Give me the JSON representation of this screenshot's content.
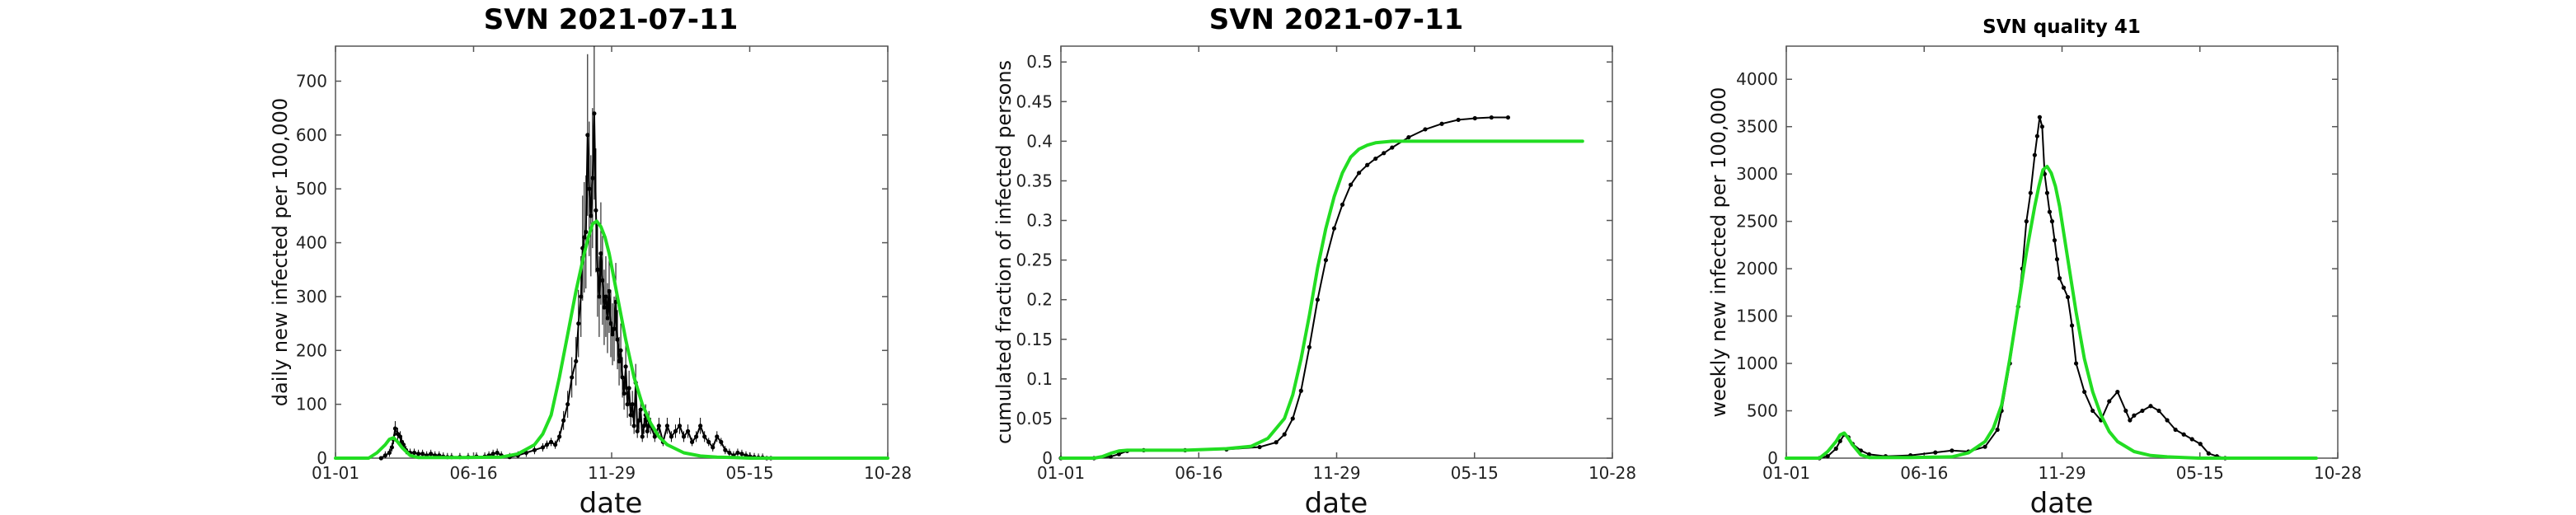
{
  "chart_data": [
    {
      "type": "line",
      "title": "SVN   2021-07-11",
      "xlabel": "date",
      "ylabel": "daily new infected per 100,000",
      "x_ticks": [
        "01-01",
        "06-16",
        "11-29",
        "05-15",
        "10-28"
      ],
      "y_ticks": [
        "0",
        "100",
        "200",
        "300",
        "400",
        "500",
        "600",
        "700"
      ],
      "ylim": [
        0,
        765
      ],
      "x_range_days": [
        0,
        666
      ],
      "x_unit": "days from 01-01",
      "grid": false,
      "series": [
        {
          "style": "black dots with error bars",
          "color": "#000000",
          "x": [
            55,
            60,
            65,
            68,
            70,
            72,
            75,
            78,
            80,
            82,
            85,
            90,
            95,
            100,
            105,
            110,
            115,
            120,
            125,
            130,
            135,
            140,
            150,
            160,
            170,
            180,
            185,
            190,
            195,
            200,
            210,
            220,
            230,
            240,
            250,
            255,
            260,
            265,
            270,
            275,
            280,
            285,
            290,
            293,
            296,
            298,
            300,
            302,
            304,
            306,
            308,
            310,
            312,
            314,
            316,
            318,
            320,
            322,
            324,
            326,
            328,
            330,
            332,
            334,
            336,
            338,
            340,
            342,
            344,
            346,
            348,
            350,
            352,
            354,
            356,
            358,
            360,
            362,
            364,
            366,
            368,
            370,
            372,
            374,
            376,
            378,
            380,
            385,
            390,
            395,
            400,
            405,
            410,
            415,
            420,
            425,
            430,
            435,
            440,
            445,
            450,
            455,
            460,
            465,
            470,
            475,
            480,
            485,
            490,
            495,
            500,
            505,
            510,
            515,
            520,
            525
          ],
          "y": [
            0,
            5,
            10,
            20,
            35,
            55,
            45,
            40,
            30,
            25,
            15,
            10,
            10,
            8,
            8,
            5,
            8,
            5,
            5,
            3,
            2,
            2,
            2,
            2,
            3,
            3,
            5,
            8,
            10,
            5,
            2,
            5,
            10,
            15,
            20,
            25,
            30,
            25,
            40,
            70,
            100,
            150,
            180,
            250,
            300,
            390,
            410,
            420,
            600,
            500,
            450,
            520,
            640,
            460,
            350,
            300,
            380,
            330,
            280,
            300,
            260,
            310,
            250,
            230,
            240,
            290,
            220,
            180,
            200,
            150,
            120,
            170,
            100,
            130,
            80,
            100,
            60,
            140,
            50,
            70,
            90,
            40,
            60,
            80,
            50,
            70,
            60,
            40,
            60,
            30,
            60,
            40,
            50,
            60,
            40,
            50,
            30,
            40,
            60,
            40,
            30,
            20,
            40,
            30,
            15,
            10,
            5,
            10,
            8,
            5,
            3,
            2,
            1,
            1,
            0,
            0
          ]
        },
        {
          "style": "green fitted curve",
          "color": "#22dd22",
          "x": [
            0,
            40,
            50,
            60,
            65,
            70,
            75,
            80,
            90,
            100,
            150,
            200,
            220,
            240,
            250,
            260,
            270,
            280,
            290,
            300,
            305,
            310,
            315,
            320,
            325,
            330,
            340,
            350,
            360,
            370,
            380,
            390,
            400,
            420,
            440,
            460,
            480,
            500,
            550,
            600,
            666
          ],
          "y": [
            0,
            0,
            10,
            25,
            35,
            38,
            30,
            20,
            5,
            1,
            1,
            2,
            8,
            25,
            45,
            80,
            150,
            230,
            310,
            380,
            410,
            435,
            440,
            430,
            410,
            380,
            300,
            220,
            150,
            100,
            65,
            40,
            25,
            10,
            4,
            2,
            1,
            0,
            0,
            0,
            0
          ]
        }
      ]
    },
    {
      "type": "line",
      "title": "SVN   2021-07-11",
      "xlabel": "date",
      "ylabel": "cumulated fraction of infected persons",
      "x_ticks": [
        "01-01",
        "06-16",
        "11-29",
        "05-15",
        "10-28"
      ],
      "y_ticks": [
        "0",
        "0.05",
        "0.1",
        "0.15",
        "0.2",
        "0.25",
        "0.3",
        "0.35",
        "0.4",
        "0.45",
        "0.5"
      ],
      "ylim": [
        0,
        0.52
      ],
      "x_range_days": [
        0,
        666
      ],
      "x_unit": "days from 01-01",
      "grid": false,
      "series": [
        {
          "style": "black dotted line",
          "color": "#000000",
          "x": [
            0,
            40,
            60,
            70,
            80,
            100,
            150,
            200,
            240,
            260,
            270,
            280,
            290,
            300,
            310,
            320,
            330,
            340,
            350,
            360,
            370,
            380,
            390,
            400,
            420,
            440,
            460,
            480,
            500,
            520,
            540
          ],
          "y": [
            0,
            0,
            0.002,
            0.005,
            0.009,
            0.01,
            0.01,
            0.011,
            0.014,
            0.02,
            0.03,
            0.05,
            0.085,
            0.14,
            0.2,
            0.25,
            0.29,
            0.32,
            0.345,
            0.36,
            0.37,
            0.378,
            0.385,
            0.392,
            0.405,
            0.415,
            0.422,
            0.427,
            0.429,
            0.43,
            0.43
          ]
        },
        {
          "style": "green fitted curve",
          "color": "#22dd22",
          "x": [
            0,
            40,
            50,
            60,
            70,
            80,
            100,
            150,
            200,
            230,
            250,
            270,
            280,
            290,
            300,
            310,
            320,
            330,
            340,
            350,
            360,
            370,
            380,
            400,
            420,
            450,
            500,
            550,
            600,
            630
          ],
          "y": [
            0,
            0,
            0.002,
            0.006,
            0.009,
            0.01,
            0.01,
            0.01,
            0.012,
            0.015,
            0.025,
            0.05,
            0.08,
            0.125,
            0.18,
            0.24,
            0.29,
            0.33,
            0.36,
            0.38,
            0.39,
            0.395,
            0.398,
            0.4,
            0.4,
            0.4,
            0.4,
            0.4,
            0.4,
            0.4
          ]
        }
      ]
    },
    {
      "type": "line",
      "title": "SVN  quality 41",
      "xlabel": "date",
      "ylabel": "weekly new infected per 100,000",
      "x_ticks": [
        "01-01",
        "06-16",
        "11-29",
        "05-15",
        "10-28"
      ],
      "y_ticks": [
        "0",
        "500",
        "1000",
        "1500",
        "2000",
        "2500",
        "3000",
        "3500",
        "4000"
      ],
      "ylim": [
        0,
        4350
      ],
      "x_range_days": [
        0,
        666
      ],
      "x_unit": "days from 01-01",
      "grid": false,
      "series": [
        {
          "style": "black dotted line",
          "color": "#000000",
          "x": [
            40,
            50,
            60,
            65,
            70,
            75,
            80,
            90,
            100,
            120,
            150,
            180,
            200,
            220,
            240,
            255,
            260,
            270,
            280,
            285,
            290,
            295,
            300,
            303,
            306,
            309,
            312,
            315,
            318,
            321,
            324,
            327,
            330,
            335,
            340,
            345,
            350,
            360,
            370,
            380,
            390,
            400,
            410,
            415,
            420,
            430,
            440,
            450,
            460,
            470,
            480,
            490,
            500,
            510,
            520,
            530
          ],
          "y": [
            0,
            20,
            100,
            180,
            250,
            220,
            150,
            80,
            40,
            20,
            30,
            60,
            80,
            70,
            120,
            300,
            500,
            1000,
            1600,
            2000,
            2500,
            2800,
            3200,
            3400,
            3600,
            3500,
            3000,
            2800,
            2600,
            2500,
            2300,
            2100,
            1900,
            1800,
            1700,
            1400,
            1000,
            700,
            500,
            400,
            600,
            700,
            500,
            400,
            450,
            500,
            550,
            500,
            400,
            300,
            250,
            200,
            150,
            50,
            20,
            0
          ]
        },
        {
          "style": "green fitted curve",
          "color": "#22dd22",
          "x": [
            0,
            40,
            50,
            60,
            65,
            70,
            75,
            80,
            90,
            100,
            150,
            200,
            220,
            240,
            250,
            260,
            270,
            280,
            290,
            300,
            305,
            310,
            315,
            320,
            325,
            330,
            340,
            350,
            360,
            370,
            380,
            390,
            400,
            420,
            440,
            460,
            480,
            500,
            550,
            600,
            640
          ],
          "y": [
            0,
            0,
            70,
            175,
            245,
            265,
            210,
            140,
            35,
            7,
            7,
            14,
            56,
            175,
            315,
            560,
            1050,
            1610,
            2170,
            2660,
            2870,
            3045,
            3080,
            3010,
            2870,
            2660,
            2100,
            1540,
            1050,
            700,
            455,
            280,
            175,
            70,
            28,
            14,
            7,
            0,
            0,
            0,
            0
          ]
        }
      ]
    }
  ]
}
